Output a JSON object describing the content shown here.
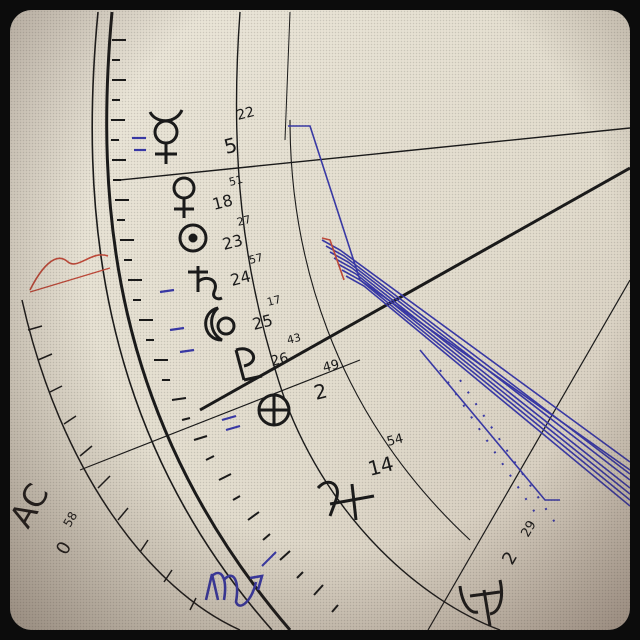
{
  "chart": {
    "planets": [
      {
        "name": "mercury-symbol",
        "degree": "5",
        "minute": "22"
      },
      {
        "name": "venus-symbol",
        "degree": "18",
        "minute": "51"
      },
      {
        "name": "sun-symbol",
        "degree": "23",
        "minute": "27"
      },
      {
        "name": "saturn-symbol",
        "degree": "24",
        "minute": "57"
      },
      {
        "name": "moon-symbol",
        "degree": "25",
        "minute": "17"
      },
      {
        "name": "pluto-symbol",
        "degree": "26",
        "minute": "43"
      },
      {
        "name": "part-of-fortune-symbol",
        "degree": "2",
        "minute": "49"
      },
      {
        "name": "jupiter-symbol",
        "degree": "14",
        "minute": "54"
      },
      {
        "name": "uranus-symbol",
        "degree": "2",
        "minute": "29"
      }
    ],
    "ascendant": {
      "label": "AC",
      "degree": "0",
      "minute": "58"
    },
    "sign": "scorpio-glyph",
    "colors": {
      "ink": "#1b1b1b",
      "aspect_blue": "#3a3aa8",
      "aspect_red": "#c04a3a",
      "paper": "#e3dccd"
    }
  }
}
